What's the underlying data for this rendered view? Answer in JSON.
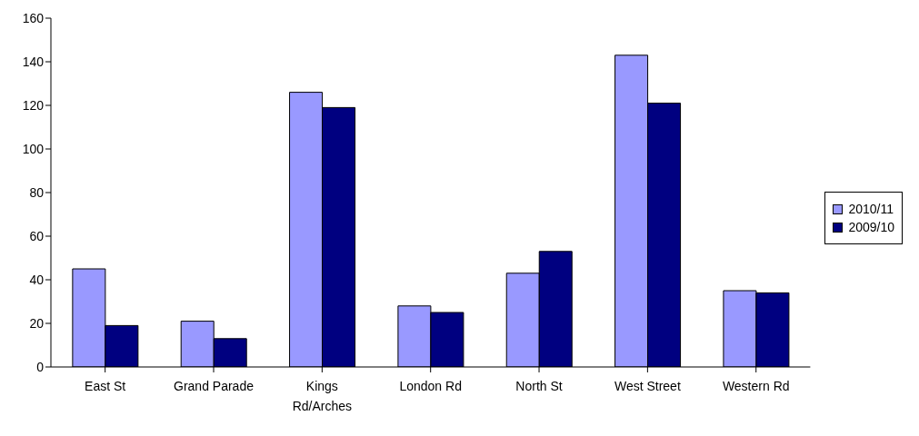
{
  "chart_data": {
    "type": "bar",
    "categories": [
      "East St",
      "Grand Parade",
      "Kings Rd/Arches",
      "London Rd",
      "North St",
      "West Street",
      "Western Rd"
    ],
    "series": [
      {
        "name": "2010/11",
        "color": "#9999ff",
        "values": [
          45,
          21,
          126,
          28,
          43,
          143,
          35
        ]
      },
      {
        "name": "2009/10",
        "color": "#000080",
        "values": [
          19,
          13,
          119,
          25,
          53,
          121,
          34
        ]
      }
    ],
    "ylim": [
      0,
      160
    ],
    "yticks": [
      0,
      20,
      40,
      60,
      80,
      100,
      120,
      140,
      160
    ],
    "grid": false,
    "legend": "right"
  }
}
